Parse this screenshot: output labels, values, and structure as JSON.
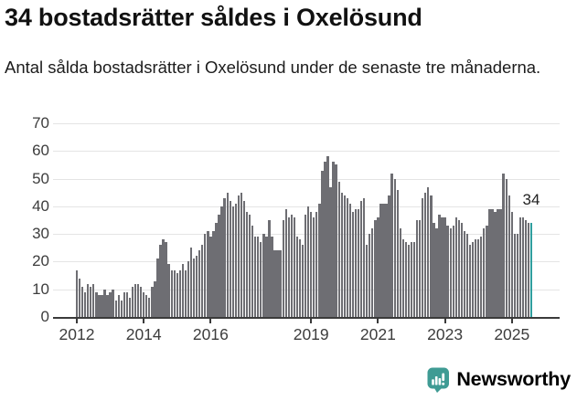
{
  "header": {
    "title": "34 bostadsrätter såldes i Oxelösund",
    "subtitle": "Antal sålda bostadsrätter i Oxelösund under de senaste tre månaderna."
  },
  "chart_data": {
    "type": "bar",
    "title": "34 bostadsrätter såldes i Oxelösund",
    "subtitle": "Antal sålda bostadsrätter i Oxelösund under de senaste tre månaderna.",
    "x_frequency": "monthly",
    "x_start": "2012-01",
    "x_end": "2025-08",
    "values": [
      17,
      14,
      11,
      9,
      12,
      11,
      12,
      9,
      8,
      8,
      10,
      8,
      9,
      10,
      6,
      8,
      6,
      9,
      9,
      7,
      11,
      12,
      12,
      11,
      9,
      8,
      7,
      11,
      13,
      21,
      26,
      28,
      27,
      19,
      17,
      17,
      16,
      17,
      19,
      17,
      20,
      25,
      21,
      22,
      24,
      26,
      30,
      31,
      29,
      31,
      34,
      37,
      40,
      43,
      45,
      42,
      40,
      41,
      44,
      45,
      42,
      38,
      37,
      33,
      29,
      29,
      27,
      30,
      29,
      35,
      29,
      24,
      24,
      24,
      35,
      39,
      36,
      37,
      36,
      29,
      28,
      26,
      37,
      40,
      38,
      36,
      38,
      41,
      53,
      56,
      58,
      47,
      56,
      55,
      49,
      45,
      44,
      43,
      41,
      38,
      39,
      39,
      42,
      43,
      26,
      30,
      32,
      35,
      36,
      41,
      41,
      41,
      44,
      52,
      50,
      46,
      32,
      28,
      27,
      26,
      27,
      27,
      35,
      35,
      43,
      45,
      47,
      44,
      34,
      32,
      37,
      36,
      36,
      33,
      32,
      33,
      36,
      35,
      34,
      31,
      30,
      26,
      27,
      28,
      28,
      29,
      32,
      33,
      39,
      39,
      38,
      39,
      39,
      52,
      50,
      44,
      38,
      30,
      30,
      36,
      36,
      35,
      34,
      34
    ],
    "ylim": [
      0,
      70
    ],
    "yticks": [
      0,
      10,
      20,
      30,
      40,
      50,
      60,
      70
    ],
    "xticks": [
      {
        "label": "2012",
        "month_index": 0
      },
      {
        "label": "2014",
        "month_index": 24
      },
      {
        "label": "2016",
        "month_index": 48
      },
      {
        "label": "2019",
        "month_index": 84
      },
      {
        "label": "2021",
        "month_index": 108
      },
      {
        "label": "2023",
        "month_index": 132
      },
      {
        "label": "2025",
        "month_index": 156
      }
    ],
    "grid": true,
    "legend": "none",
    "bar_color": "#6e6e73",
    "gridline_color": "#e4e4e4",
    "axis_color": "#3a3a3a",
    "highlight": {
      "month": "2025-08",
      "index": 163,
      "value": 34,
      "label": "34",
      "color": "#2f9e9e"
    }
  },
  "footer": {
    "brand_name": "Newsworthy",
    "brand_color": "#3f9b94",
    "logo_icon": "bar-chart-speech-bubble-icon"
  }
}
